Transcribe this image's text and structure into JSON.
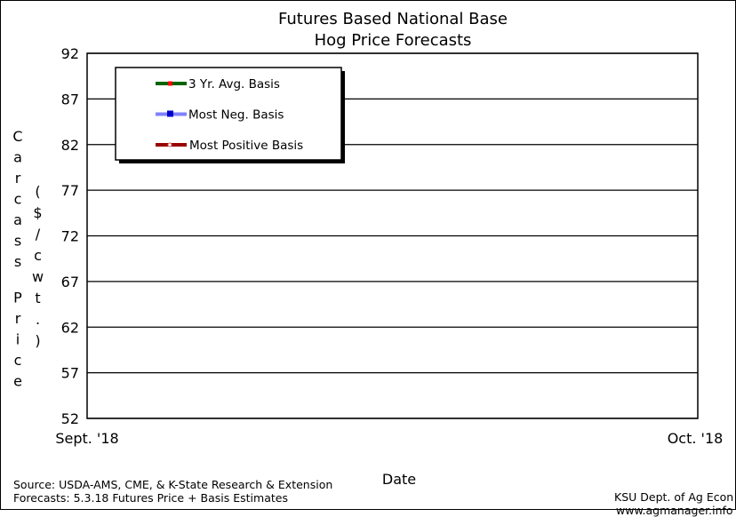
{
  "chart_data": {
    "type": "line",
    "title": [
      "Futures Based National Base",
      "Hog Price Forecasts"
    ],
    "xlabel": "Date",
    "ylabel_left": "Carcass Price",
    "ylabel_right": "($/cwt.)",
    "ylim": [
      52,
      92
    ],
    "yticks": [
      92,
      87,
      82,
      77,
      72,
      67,
      62,
      57,
      52
    ],
    "xtick_labels": [
      "Sept. '18",
      "Oct. '18"
    ],
    "grid": "horizontal",
    "legend_position": "top-left",
    "series": [
      {
        "name": "3 Yr. Avg. Basis",
        "line_color": "#006400",
        "marker_color": "#ff0000",
        "values": []
      },
      {
        "name": "Most Neg. Basis",
        "line_color": "#8080ff",
        "marker_color": "#0000cc",
        "values": []
      },
      {
        "name": "Most Positive Basis",
        "line_color": "#990000",
        "marker_color": "#cc6666",
        "values": []
      }
    ]
  },
  "footer": {
    "source": "Source: USDA-AMS, CME, & K-State Research & Extension",
    "forecasts": "Forecasts: 5.3.18 Futures Price + Basis Estimates",
    "credit": "KSU Dept. of Ag Econ",
    "website": "www.agmanager.info"
  }
}
